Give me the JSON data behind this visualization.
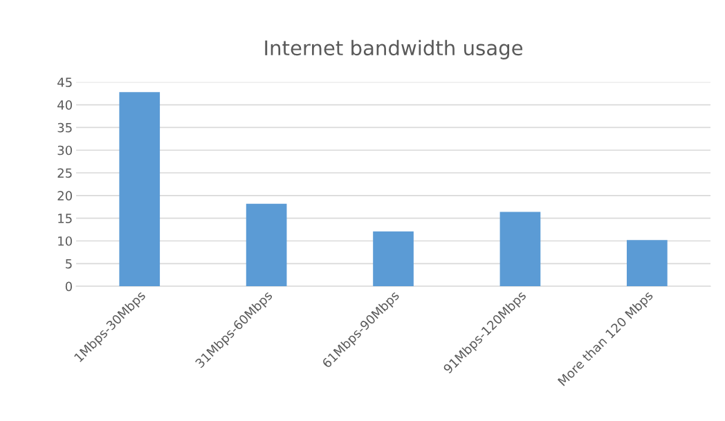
{
  "chart_data": {
    "type": "bar",
    "title": "Internet bandwidth usage",
    "categories": [
      "1Mbps-30Mbps",
      "31Mbps-60Mbps",
      "61Mbps-90Mbps",
      "91Mbps-120Mbps",
      "More than 120 Mbps"
    ],
    "values": [
      42.8,
      18.2,
      12.1,
      16.4,
      10.2
    ],
    "color": "#5b9bd5",
    "ylim": [
      0,
      45
    ],
    "yticks": [
      0,
      5,
      10,
      15,
      20,
      25,
      30,
      35,
      40,
      45
    ],
    "grid": "y"
  }
}
